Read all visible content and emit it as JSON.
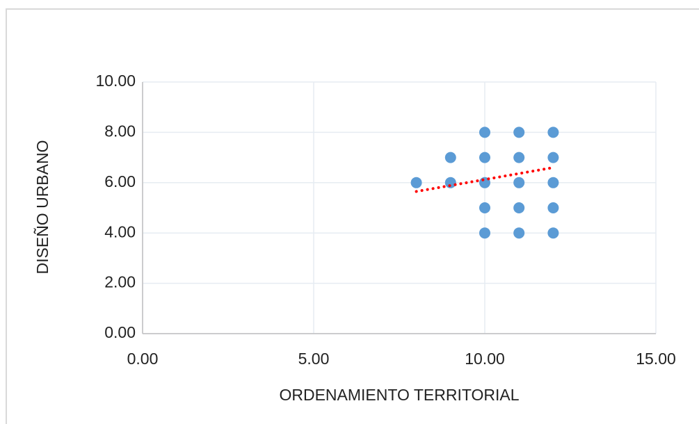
{
  "chart_data": {
    "type": "scatter",
    "x_label": "ORDENAMIENTO TERRITORIAL",
    "y_label": "DISEÑO URBANO",
    "series": [
      {
        "color": "#5b9bd5",
        "x": [
          8,
          9,
          9,
          10,
          10,
          10,
          10,
          10,
          11,
          11,
          11,
          11,
          11,
          12,
          12,
          12,
          12,
          12
        ],
        "values": [
          6,
          7,
          6,
          8,
          7,
          6,
          5,
          4,
          8,
          7,
          6,
          5,
          4,
          8,
          7,
          6,
          5,
          4
        ]
      }
    ],
    "trendline": {
      "color": "#ff0000",
      "x": [
        8,
        12
      ],
      "y": [
        5.65,
        6.6
      ]
    },
    "xlim": [
      0,
      15
    ],
    "xticks": [
      {
        "value": 0,
        "label": "0.00"
      },
      {
        "value": 5,
        "label": "5.00"
      },
      {
        "value": 10,
        "label": "10.00"
      },
      {
        "value": 15,
        "label": "15.00"
      }
    ],
    "ylim": [
      0,
      10
    ],
    "yticks": [
      {
        "value": 0,
        "label": "0.00"
      },
      {
        "value": 2,
        "label": "2.00"
      },
      {
        "value": 4,
        "label": "4.00"
      },
      {
        "value": 6,
        "label": "6.00"
      },
      {
        "value": 8,
        "label": "8.00"
      },
      {
        "value": 10,
        "label": "10.00"
      }
    ],
    "grid": true
  }
}
